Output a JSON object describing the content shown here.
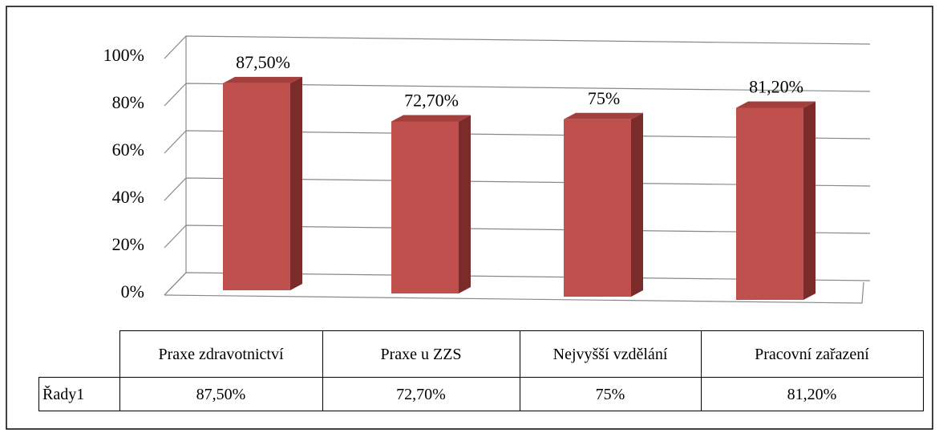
{
  "chart_data": {
    "type": "bar3d",
    "categories": [
      "Praxe zdravotnictví",
      "Praxe u ZZS",
      "Nejvyšší vzdělání",
      "Pracovní zařazení"
    ],
    "series": [
      {
        "name": "Řady1",
        "color": "#c0504d",
        "values": [
          87.5,
          72.7,
          75,
          81.2
        ],
        "value_labels": [
          "87,50%",
          "72,70%",
          "75%",
          "81,20%"
        ]
      }
    ],
    "ylim": [
      0,
      100
    ],
    "yticks": [
      {
        "value": 0,
        "label": "0%"
      },
      {
        "value": 20,
        "label": "20%"
      },
      {
        "value": 40,
        "label": "40%"
      },
      {
        "value": 60,
        "label": "60%"
      },
      {
        "value": 80,
        "label": "80%"
      },
      {
        "value": 100,
        "label": "100%"
      }
    ],
    "grid": true
  }
}
